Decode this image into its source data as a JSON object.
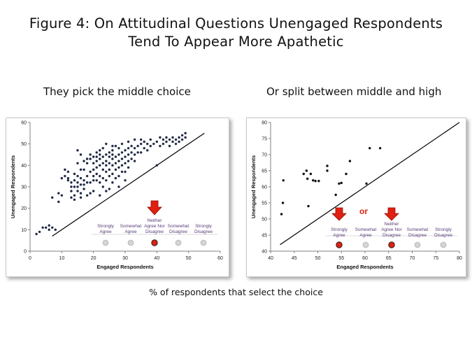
{
  "figure": {
    "title_line1": "Figure 4: On Attitudinal Questions Unengaged Respondents",
    "title_line2": "Tend To Appear More Apathetic",
    "footer": "% of respondents that select the choice"
  },
  "chart_data": [
    {
      "type": "scatter",
      "subtitle": "They pick the middle choice",
      "xlabel": "Engaged Respondents",
      "ylabel": "Unengaged Respondents",
      "xlim": [
        0,
        60
      ],
      "ylim": [
        0,
        60
      ],
      "xticks": [
        0,
        10,
        20,
        30,
        40,
        50,
        60
      ],
      "yticks": [
        0,
        10,
        20,
        30,
        40,
        50,
        60
      ],
      "grid": false,
      "reference_line": {
        "from": [
          7,
          7
        ],
        "to": [
          55,
          55
        ]
      },
      "points": [
        [
          2,
          8
        ],
        [
          3,
          9
        ],
        [
          4,
          11
        ],
        [
          5,
          11
        ],
        [
          6,
          12
        ],
        [
          7,
          11
        ],
        [
          8,
          10
        ],
        [
          6,
          10
        ],
        [
          7,
          25
        ],
        [
          9,
          23
        ],
        [
          9,
          27
        ],
        [
          10,
          26
        ],
        [
          10,
          34
        ],
        [
          11,
          35
        ],
        [
          11,
          38
        ],
        [
          12,
          34
        ],
        [
          12,
          37
        ],
        [
          12,
          33
        ],
        [
          13,
          32
        ],
        [
          13,
          28
        ],
        [
          13,
          25
        ],
        [
          13,
          30
        ],
        [
          14,
          30
        ],
        [
          14,
          33
        ],
        [
          14,
          36
        ],
        [
          14,
          26
        ],
        [
          15,
          30
        ],
        [
          15,
          28
        ],
        [
          15,
          32
        ],
        [
          15,
          35
        ],
        [
          15,
          41
        ],
        [
          15,
          47
        ],
        [
          16,
          27
        ],
        [
          16,
          31
        ],
        [
          16,
          34
        ],
        [
          16,
          38
        ],
        [
          16,
          45
        ],
        [
          17,
          31
        ],
        [
          17,
          29
        ],
        [
          17,
          33
        ],
        [
          17,
          38
        ],
        [
          17,
          42
        ],
        [
          18,
          26
        ],
        [
          18,
          32
        ],
        [
          18,
          35
        ],
        [
          18,
          41
        ],
        [
          19,
          27
        ],
        [
          19,
          32
        ],
        [
          19,
          37
        ],
        [
          19,
          43
        ],
        [
          19,
          45
        ],
        [
          20,
          28
        ],
        [
          20,
          33
        ],
        [
          20,
          38
        ],
        [
          20,
          41
        ],
        [
          20,
          44
        ],
        [
          21,
          33
        ],
        [
          21,
          36
        ],
        [
          21,
          39
        ],
        [
          21,
          42
        ],
        [
          21,
          44
        ],
        [
          21,
          46
        ],
        [
          22,
          32
        ],
        [
          22,
          35
        ],
        [
          22,
          40
        ],
        [
          22,
          43
        ],
        [
          22,
          45
        ],
        [
          22,
          47
        ],
        [
          23,
          30
        ],
        [
          23,
          34
        ],
        [
          23,
          38
        ],
        [
          23,
          41
        ],
        [
          23,
          44
        ],
        [
          23,
          48
        ],
        [
          24,
          33
        ],
        [
          24,
          37
        ],
        [
          24,
          40
        ],
        [
          24,
          42
        ],
        [
          24,
          45
        ],
        [
          24,
          50
        ],
        [
          25,
          29
        ],
        [
          25,
          35
        ],
        [
          25,
          38
        ],
        [
          25,
          41
        ],
        [
          25,
          44
        ],
        [
          25,
          46
        ],
        [
          26,
          32
        ],
        [
          26,
          36
        ],
        [
          26,
          40
        ],
        [
          26,
          43
        ],
        [
          26,
          45
        ],
        [
          26,
          47
        ],
        [
          27,
          34
        ],
        [
          27,
          38
        ],
        [
          27,
          41
        ],
        [
          27,
          44
        ],
        [
          27,
          49
        ],
        [
          28,
          35
        ],
        [
          28,
          39
        ],
        [
          28,
          42
        ],
        [
          28,
          45
        ],
        [
          28,
          48
        ],
        [
          29,
          37
        ],
        [
          29,
          40
        ],
        [
          29,
          43
        ],
        [
          29,
          46
        ],
        [
          29,
          50
        ],
        [
          30,
          37
        ],
        [
          30,
          41
        ],
        [
          30,
          44
        ],
        [
          30,
          47
        ],
        [
          31,
          39
        ],
        [
          31,
          42
        ],
        [
          31,
          45
        ],
        [
          31,
          48
        ],
        [
          31,
          51
        ],
        [
          32,
          43
        ],
        [
          32,
          46
        ],
        [
          32,
          49
        ],
        [
          33,
          45
        ],
        [
          33,
          48
        ],
        [
          33,
          52
        ],
        [
          34,
          46
        ],
        [
          34,
          49
        ],
        [
          35,
          46
        ],
        [
          35,
          50
        ],
        [
          35,
          52
        ],
        [
          36,
          48
        ],
        [
          36,
          51
        ],
        [
          37,
          47
        ],
        [
          37,
          50
        ],
        [
          38,
          49
        ],
        [
          38,
          52
        ],
        [
          39,
          50
        ],
        [
          40,
          40
        ],
        [
          40,
          51
        ],
        [
          41,
          49
        ],
        [
          41,
          53
        ],
        [
          42,
          50
        ],
        [
          42,
          52
        ],
        [
          43,
          51
        ],
        [
          43,
          53
        ],
        [
          44,
          49
        ],
        [
          44,
          52
        ],
        [
          45,
          51
        ],
        [
          45,
          53
        ],
        [
          46,
          50
        ],
        [
          46,
          52
        ],
        [
          47,
          51
        ],
        [
          47,
          53
        ],
        [
          48,
          52
        ],
        [
          48,
          54
        ],
        [
          49,
          53
        ],
        [
          49,
          55
        ],
        [
          20,
          35
        ],
        [
          18,
          43
        ],
        [
          24,
          28
        ],
        [
          22,
          26
        ],
        [
          16,
          25
        ],
        [
          14,
          24
        ],
        [
          28,
          30
        ],
        [
          30,
          33
        ],
        [
          26,
          49
        ],
        [
          33,
          42
        ]
      ],
      "choice_labels": [
        [
          "Strongly",
          "Agree"
        ],
        [
          "Somewhat",
          "Agree"
        ],
        [
          "Neither",
          "Agree Nor",
          "Disagree"
        ],
        [
          "Somewhat",
          "Disagree"
        ],
        [
          "Strongly",
          "Disagree"
        ]
      ],
      "highlighted_choices": [
        2
      ],
      "arrow_over_choices": [
        2
      ],
      "colors": {
        "points": "#1f2a44",
        "highlight": "#e02010",
        "choice_text": "#5a3c78",
        "arrow": "#e02010"
      }
    },
    {
      "type": "scatter",
      "subtitle": "Or split between middle and high",
      "xlabel": "Engaged Respondents",
      "ylabel": "Unengaged Respondents",
      "xlim": [
        40,
        80
      ],
      "ylim": [
        40,
        80
      ],
      "xticks": [
        40,
        45,
        50,
        55,
        60,
        65,
        70,
        75,
        80
      ],
      "yticks": [
        40,
        45,
        50,
        55,
        60,
        65,
        70,
        75,
        80
      ],
      "grid": false,
      "reference_line": {
        "from": [
          42,
          42
        ],
        "to": [
          80,
          80
        ]
      },
      "points": [
        [
          42.3,
          51.5
        ],
        [
          42.6,
          55
        ],
        [
          42.7,
          62
        ],
        [
          47,
          64
        ],
        [
          47.6,
          65
        ],
        [
          47.8,
          62.5
        ],
        [
          48,
          54
        ],
        [
          48.5,
          64
        ],
        [
          49,
          62
        ],
        [
          49.5,
          61.8
        ],
        [
          50.2,
          61.8
        ],
        [
          52,
          66.5
        ],
        [
          52,
          65
        ],
        [
          53.8,
          57.5
        ],
        [
          54.5,
          61
        ],
        [
          55,
          61.2
        ],
        [
          56,
          64
        ],
        [
          56.8,
          68
        ],
        [
          60.3,
          61
        ],
        [
          61,
          72
        ],
        [
          63.2,
          72
        ]
      ],
      "choice_labels": [
        [
          "Strongly",
          "Agree"
        ],
        [
          "Somewhat",
          "Agree"
        ],
        [
          "Neither",
          "Agree Nor",
          "Disagree"
        ],
        [
          "Somewhat",
          "Disagree"
        ],
        [
          "Strongly",
          "Disagree"
        ]
      ],
      "highlighted_choices": [
        0,
        2
      ],
      "arrow_over_choices": [
        0,
        2
      ],
      "annotation": "or",
      "colors": {
        "points": "#111111",
        "highlight": "#e02010",
        "choice_text": "#5a3c78",
        "arrow": "#e02010",
        "annotation": "#e02010"
      }
    }
  ]
}
